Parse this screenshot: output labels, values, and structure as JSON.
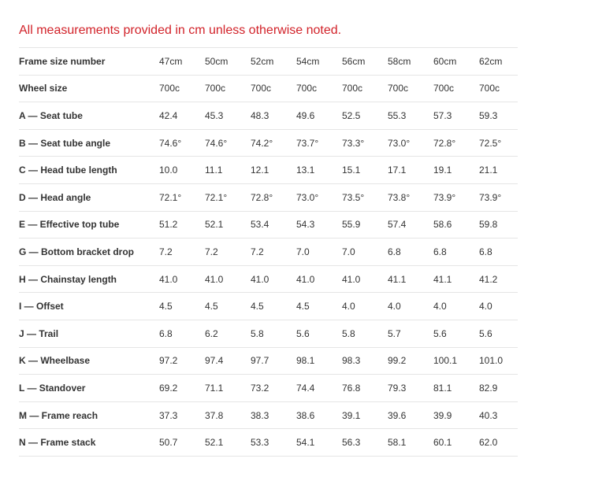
{
  "note": "All measurements provided in cm unless otherwise noted.",
  "colors": {
    "accent": "#d2232a",
    "border": "#e5e5e5",
    "text": "#333333"
  },
  "rows": [
    {
      "label": "Frame size number",
      "values": [
        "47cm",
        "50cm",
        "52cm",
        "54cm",
        "56cm",
        "58cm",
        "60cm",
        "62cm"
      ]
    },
    {
      "label": "Wheel size",
      "values": [
        "700c",
        "700c",
        "700c",
        "700c",
        "700c",
        "700c",
        "700c",
        "700c"
      ]
    },
    {
      "label": "A — Seat tube",
      "values": [
        "42.4",
        "45.3",
        "48.3",
        "49.6",
        "52.5",
        "55.3",
        "57.3",
        "59.3"
      ]
    },
    {
      "label": "B — Seat tube angle",
      "values": [
        "74.6°",
        "74.6°",
        "74.2°",
        "73.7°",
        "73.3°",
        "73.0°",
        "72.8°",
        "72.5°"
      ]
    },
    {
      "label": "C — Head tube length",
      "values": [
        "10.0",
        "11.1",
        "12.1",
        "13.1",
        "15.1",
        "17.1",
        "19.1",
        "21.1"
      ]
    },
    {
      "label": "D — Head angle",
      "values": [
        "72.1°",
        "72.1°",
        "72.8°",
        "73.0°",
        "73.5°",
        "73.8°",
        "73.9°",
        "73.9°"
      ]
    },
    {
      "label": "E — Effective top tube",
      "values": [
        "51.2",
        "52.1",
        "53.4",
        "54.3",
        "55.9",
        "57.4",
        "58.6",
        "59.8"
      ]
    },
    {
      "label": "G — Bottom bracket drop",
      "values": [
        "7.2",
        "7.2",
        "7.2",
        "7.0",
        "7.0",
        "6.8",
        "6.8",
        "6.8"
      ]
    },
    {
      "label": "H — Chainstay length",
      "values": [
        "41.0",
        "41.0",
        "41.0",
        "41.0",
        "41.0",
        "41.1",
        "41.1",
        "41.2"
      ]
    },
    {
      "label": "I — Offset",
      "values": [
        "4.5",
        "4.5",
        "4.5",
        "4.5",
        "4.0",
        "4.0",
        "4.0",
        "4.0"
      ]
    },
    {
      "label": "J — Trail",
      "values": [
        "6.8",
        "6.2",
        "5.8",
        "5.6",
        "5.8",
        "5.7",
        "5.6",
        "5.6"
      ]
    },
    {
      "label": "K — Wheelbase",
      "values": [
        "97.2",
        "97.4",
        "97.7",
        "98.1",
        "98.3",
        "99.2",
        "100.1",
        "101.0"
      ]
    },
    {
      "label": "L — Standover",
      "values": [
        "69.2",
        "71.1",
        "73.2",
        "74.4",
        "76.8",
        "79.3",
        "81.1",
        "82.9"
      ]
    },
    {
      "label": "M — Frame reach",
      "values": [
        "37.3",
        "37.8",
        "38.3",
        "38.6",
        "39.1",
        "39.6",
        "39.9",
        "40.3"
      ]
    },
    {
      "label": "N — Frame stack",
      "values": [
        "50.7",
        "52.1",
        "53.3",
        "54.1",
        "56.3",
        "58.1",
        "60.1",
        "62.0"
      ]
    }
  ]
}
